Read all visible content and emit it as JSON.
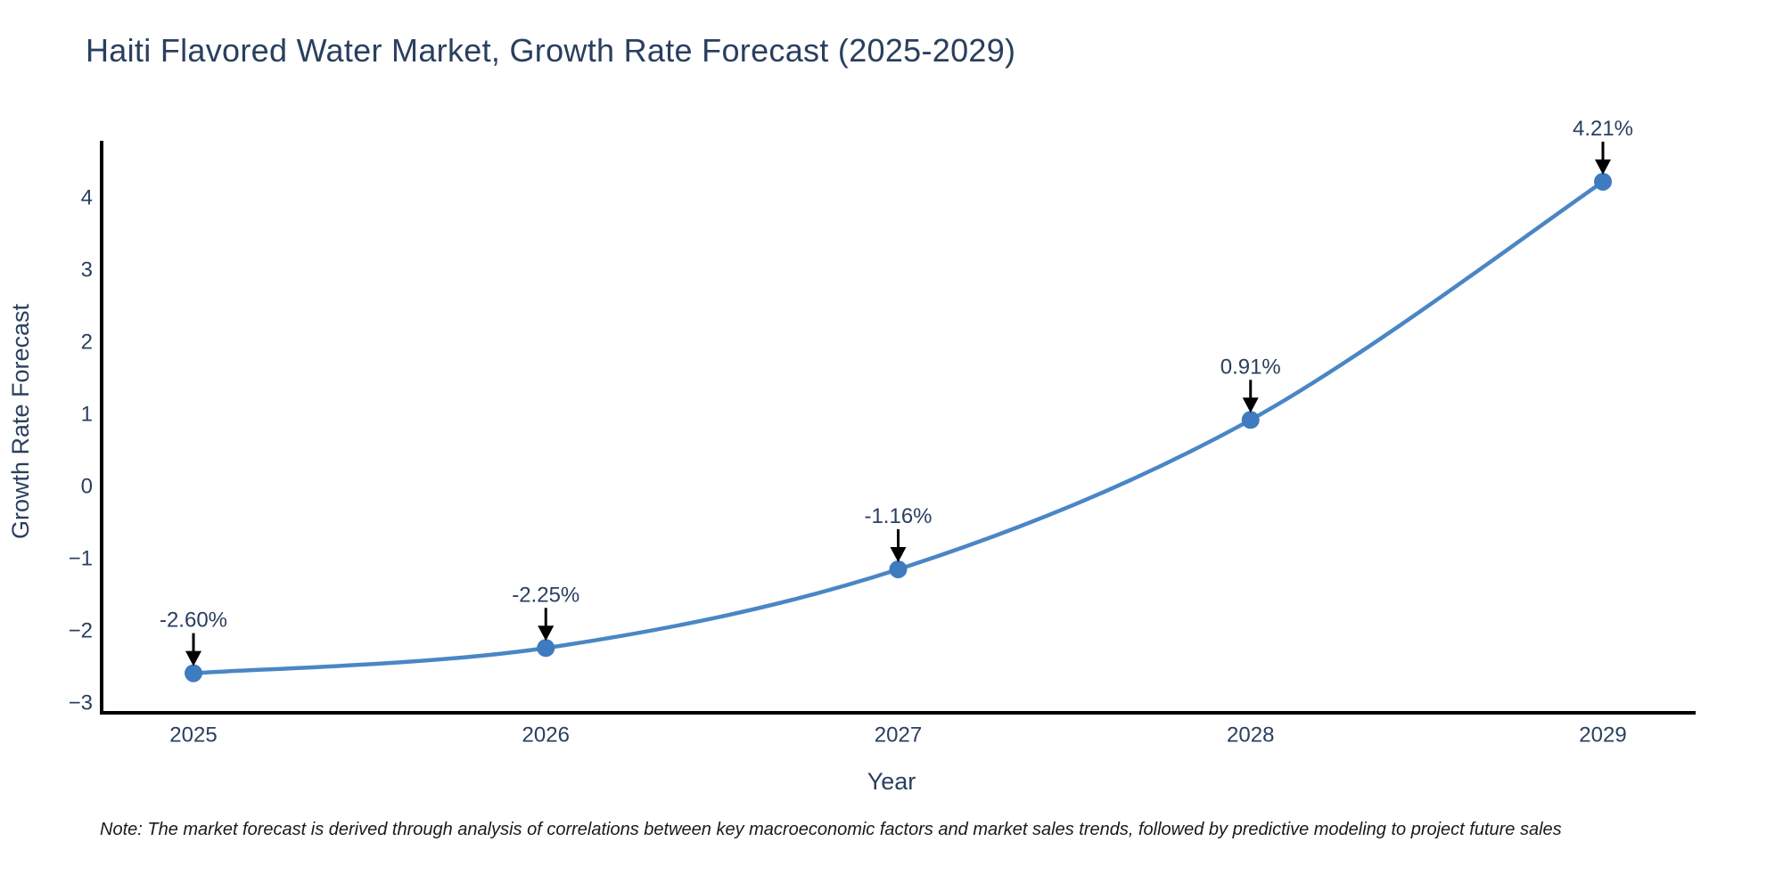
{
  "title": "Haiti Flavored Water Market, Growth Rate Forecast (2025-2029)",
  "note": "Note: The market forecast is derived through analysis of correlations between key macroeconomic factors and market sales trends, followed by predictive modeling to project future sales",
  "chart_data": {
    "type": "line",
    "title": "Haiti Flavored Water Market, Growth Rate Forecast (2025-2029)",
    "categories": [
      "2025",
      "2026",
      "2027",
      "2028",
      "2029"
    ],
    "values": [
      -2.6,
      -2.25,
      -1.16,
      0.91,
      4.21
    ],
    "point_labels": [
      "-2.60%",
      "-2.25%",
      "-1.16%",
      "0.91%",
      "4.21%"
    ],
    "series": [
      {
        "name": "Growth Rate Forecast",
        "values": [
          -2.6,
          -2.25,
          -1.16,
          0.91,
          4.21
        ]
      }
    ],
    "xlabel": "Year",
    "ylabel": "Growth Rate Forecast",
    "yticks": [
      4,
      3,
      2,
      1,
      0,
      -1,
      -2,
      -3
    ],
    "ylim": [
      -3.1,
      4.8
    ],
    "grid": false,
    "legend": "none",
    "line_shape": "spline",
    "annotation_arrows": true,
    "colors": {
      "line": "#4a86c5",
      "marker": "#3e7bbf",
      "axis": "#000000",
      "arrow": "#000000",
      "text": "#2a3f5f",
      "note_text": "#1a1a1a",
      "background": "#ffffff"
    }
  }
}
